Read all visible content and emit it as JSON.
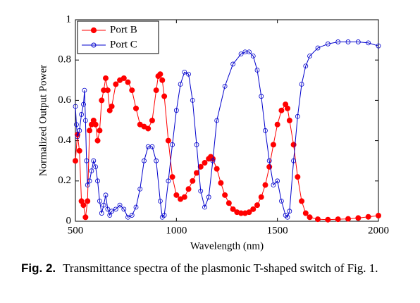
{
  "chart_data": {
    "type": "line",
    "xlabel": "Wavelength (nm)",
    "ylabel": "Normalized Output Power",
    "xlim": [
      500,
      2000
    ],
    "xticks": [
      500,
      1000,
      1500,
      2000
    ],
    "ylim": [
      0,
      1
    ],
    "yticks": [
      0,
      0.2,
      0.4,
      0.6,
      0.8,
      1
    ],
    "legend": "upper left",
    "series": [
      {
        "name": "Port B",
        "color": "#ff0000",
        "marker": "filled",
        "x": [
          500,
          510,
          520,
          530,
          540,
          550,
          560,
          570,
          580,
          590,
          600,
          610,
          620,
          630,
          640,
          650,
          660,
          670,
          680,
          700,
          720,
          740,
          760,
          780,
          800,
          820,
          840,
          860,
          880,
          900,
          910,
          920,
          930,
          940,
          960,
          980,
          1000,
          1020,
          1040,
          1060,
          1080,
          1100,
          1120,
          1140,
          1160,
          1170,
          1180,
          1200,
          1220,
          1240,
          1260,
          1280,
          1300,
          1320,
          1340,
          1360,
          1380,
          1400,
          1420,
          1440,
          1460,
          1480,
          1500,
          1520,
          1540,
          1550,
          1560,
          1580,
          1600,
          1620,
          1640,
          1660,
          1700,
          1750,
          1800,
          1850,
          1900,
          1950,
          2000
        ],
        "values": [
          0.3,
          0.43,
          0.35,
          0.1,
          0.08,
          0.02,
          0.1,
          0.45,
          0.48,
          0.5,
          0.48,
          0.4,
          0.45,
          0.6,
          0.65,
          0.71,
          0.65,
          0.55,
          0.57,
          0.68,
          0.7,
          0.71,
          0.69,
          0.65,
          0.56,
          0.48,
          0.47,
          0.46,
          0.5,
          0.65,
          0.72,
          0.73,
          0.7,
          0.62,
          0.4,
          0.22,
          0.13,
          0.11,
          0.12,
          0.16,
          0.2,
          0.24,
          0.27,
          0.29,
          0.31,
          0.32,
          0.31,
          0.26,
          0.19,
          0.13,
          0.09,
          0.06,
          0.045,
          0.04,
          0.04,
          0.045,
          0.06,
          0.08,
          0.12,
          0.18,
          0.27,
          0.38,
          0.48,
          0.55,
          0.58,
          0.56,
          0.5,
          0.38,
          0.22,
          0.1,
          0.04,
          0.02,
          0.01,
          0.008,
          0.01,
          0.012,
          0.016,
          0.022,
          0.028
        ]
      },
      {
        "name": "Port C",
        "color": "#0000cc",
        "marker": "open",
        "x": [
          500,
          505,
          510,
          520,
          530,
          540,
          545,
          550,
          555,
          560,
          570,
          580,
          590,
          600,
          610,
          620,
          630,
          640,
          650,
          660,
          670,
          680,
          700,
          720,
          740,
          760,
          780,
          800,
          820,
          840,
          860,
          880,
          900,
          920,
          930,
          940,
          960,
          980,
          1000,
          1020,
          1040,
          1060,
          1080,
          1100,
          1120,
          1140,
          1160,
          1180,
          1200,
          1240,
          1280,
          1320,
          1340,
          1360,
          1380,
          1400,
          1420,
          1440,
          1460,
          1480,
          1500,
          1520,
          1540,
          1550,
          1560,
          1580,
          1600,
          1620,
          1640,
          1660,
          1700,
          1750,
          1800,
          1850,
          1900,
          1950,
          2000
        ],
        "values": [
          0.57,
          0.48,
          0.42,
          0.45,
          0.53,
          0.58,
          0.65,
          0.5,
          0.3,
          0.18,
          0.2,
          0.25,
          0.3,
          0.27,
          0.2,
          0.1,
          0.04,
          0.08,
          0.13,
          0.06,
          0.03,
          0.05,
          0.06,
          0.08,
          0.06,
          0.02,
          0.03,
          0.07,
          0.16,
          0.3,
          0.37,
          0.37,
          0.3,
          0.1,
          0.02,
          0.03,
          0.2,
          0.38,
          0.55,
          0.68,
          0.74,
          0.73,
          0.6,
          0.38,
          0.15,
          0.07,
          0.12,
          0.3,
          0.5,
          0.67,
          0.78,
          0.83,
          0.84,
          0.84,
          0.82,
          0.75,
          0.62,
          0.45,
          0.3,
          0.18,
          0.2,
          0.1,
          0.03,
          0.02,
          0.05,
          0.3,
          0.52,
          0.68,
          0.77,
          0.82,
          0.86,
          0.88,
          0.89,
          0.89,
          0.89,
          0.885,
          0.87
        ]
      }
    ],
    "figure_label": "Fig. 2.",
    "caption": "Transmittance spectra of the plasmonic T-shaped switch of Fig. 1."
  }
}
